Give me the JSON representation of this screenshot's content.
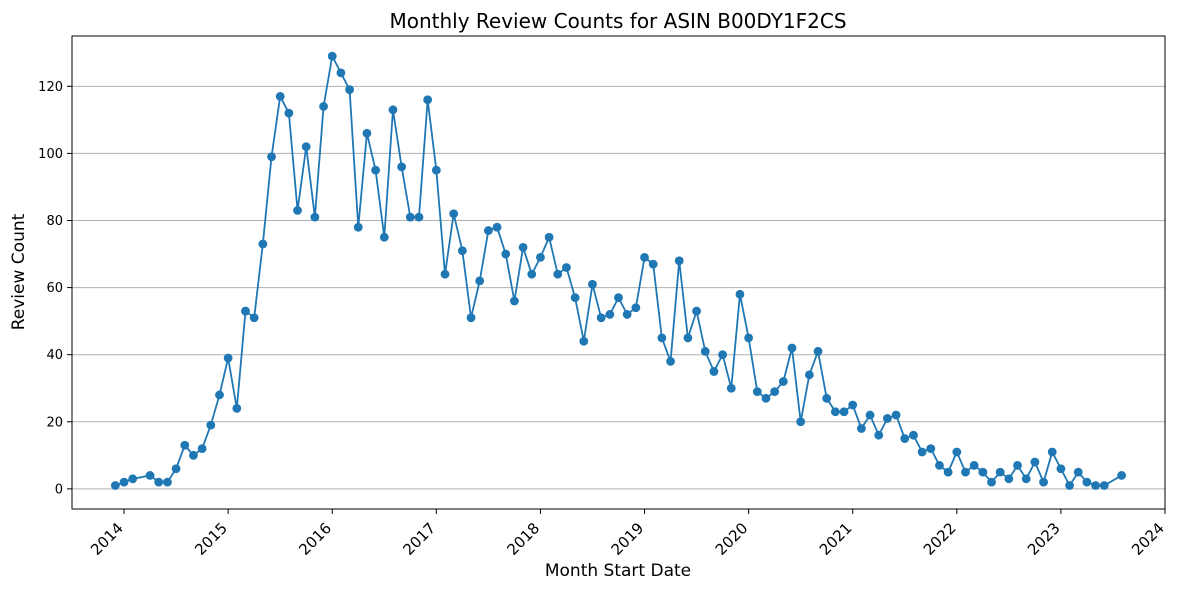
{
  "chart_data": {
    "type": "line",
    "title": "Monthly Review Counts for ASIN B00DY1F2CS",
    "xlabel": "Month Start Date",
    "ylabel": "Review Count",
    "x_ticks": [
      "2014",
      "2015",
      "2016",
      "2017",
      "2018",
      "2019",
      "2020",
      "2021",
      "2022",
      "2023",
      "2024"
    ],
    "y_ticks": [
      0,
      20,
      40,
      60,
      80,
      100,
      120
    ],
    "xlim": [
      "2013-07-01",
      "2024-01-01"
    ],
    "ylim": [
      -6,
      135
    ],
    "grid": "y-axis",
    "marker": "circle",
    "color": "#1f77b4",
    "series": [
      {
        "x": [
          "2013-12",
          "2014-01",
          "2014-02",
          "2014-04",
          "2014-05",
          "2014-06",
          "2014-07",
          "2014-08",
          "2014-09",
          "2014-10",
          "2014-11",
          "2014-12",
          "2015-01",
          "2015-02",
          "2015-03",
          "2015-04",
          "2015-05",
          "2015-06",
          "2015-07",
          "2015-08",
          "2015-09",
          "2015-10",
          "2015-11",
          "2015-12",
          "2016-01",
          "2016-02",
          "2016-03",
          "2016-04",
          "2016-05",
          "2016-06",
          "2016-07",
          "2016-08",
          "2016-09",
          "2016-10",
          "2016-11",
          "2016-12",
          "2017-01",
          "2017-02",
          "2017-03",
          "2017-04",
          "2017-05",
          "2017-06",
          "2017-07",
          "2017-08",
          "2017-09",
          "2017-10",
          "2017-11",
          "2017-12",
          "2018-01",
          "2018-02",
          "2018-03",
          "2018-04",
          "2018-05",
          "2018-06",
          "2018-07",
          "2018-08",
          "2018-09",
          "2018-10",
          "2018-11",
          "2018-12",
          "2019-01",
          "2019-02",
          "2019-03",
          "2019-04",
          "2019-05",
          "2019-06",
          "2019-07",
          "2019-08",
          "2019-09",
          "2019-10",
          "2019-11",
          "2019-12",
          "2020-01",
          "2020-02",
          "2020-03",
          "2020-04",
          "2020-05",
          "2020-06",
          "2020-07",
          "2020-08",
          "2020-09",
          "2020-10",
          "2020-11",
          "2020-12",
          "2021-01",
          "2021-02",
          "2021-03",
          "2021-04",
          "2021-05",
          "2021-06",
          "2021-07",
          "2021-08",
          "2021-09",
          "2021-10",
          "2021-11",
          "2021-12",
          "2022-01",
          "2022-02",
          "2022-03",
          "2022-04",
          "2022-05",
          "2022-06",
          "2022-07",
          "2022-08",
          "2022-09",
          "2022-10",
          "2022-11",
          "2022-12",
          "2023-01",
          "2023-02",
          "2023-03",
          "2023-04",
          "2023-05",
          "2023-06",
          "2023-08"
        ],
        "values": [
          1,
          2,
          3,
          4,
          2,
          2,
          6,
          13,
          10,
          12,
          19,
          28,
          39,
          24,
          53,
          51,
          73,
          99,
          117,
          112,
          83,
          102,
          81,
          114,
          129,
          124,
          119,
          78,
          106,
          95,
          75,
          113,
          96,
          81,
          81,
          116,
          95,
          64,
          82,
          71,
          51,
          62,
          77,
          78,
          70,
          56,
          72,
          64,
          69,
          75,
          64,
          66,
          57,
          44,
          61,
          51,
          52,
          57,
          52,
          54,
          69,
          67,
          45,
          38,
          68,
          45,
          53,
          41,
          35,
          40,
          30,
          58,
          45,
          29,
          27,
          29,
          32,
          42,
          20,
          34,
          41,
          27,
          23,
          23,
          25,
          18,
          22,
          16,
          21,
          22,
          15,
          16,
          11,
          12,
          7,
          5,
          11,
          5,
          7,
          5,
          2,
          5,
          3,
          7,
          3,
          8,
          2,
          11,
          6,
          1,
          5,
          2,
          1,
          1,
          4
        ]
      }
    ]
  }
}
